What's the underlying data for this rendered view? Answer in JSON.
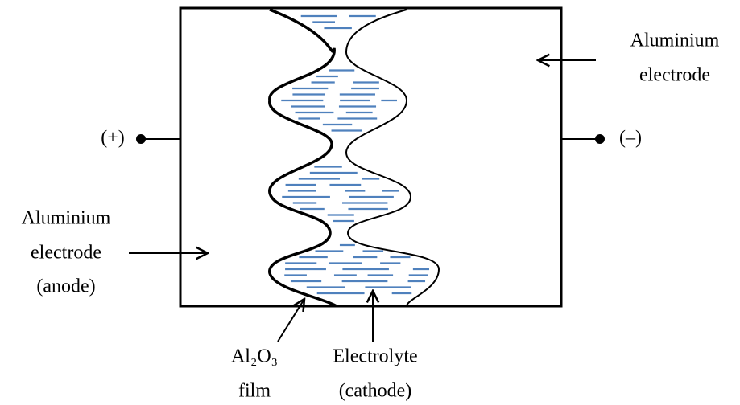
{
  "terminals": {
    "positive": "(+)",
    "negative": "(–)"
  },
  "right_electrode": {
    "lines": [
      "Aluminium",
      "electrode"
    ]
  },
  "left_electrode": {
    "lines": [
      "Aluminium",
      "electrode",
      "(anode)"
    ]
  },
  "film": {
    "lines": [
      "Al₂O₃",
      "film"
    ]
  },
  "electrolyte": {
    "lines": [
      "Electrolyte",
      "(cathode)"
    ]
  }
}
